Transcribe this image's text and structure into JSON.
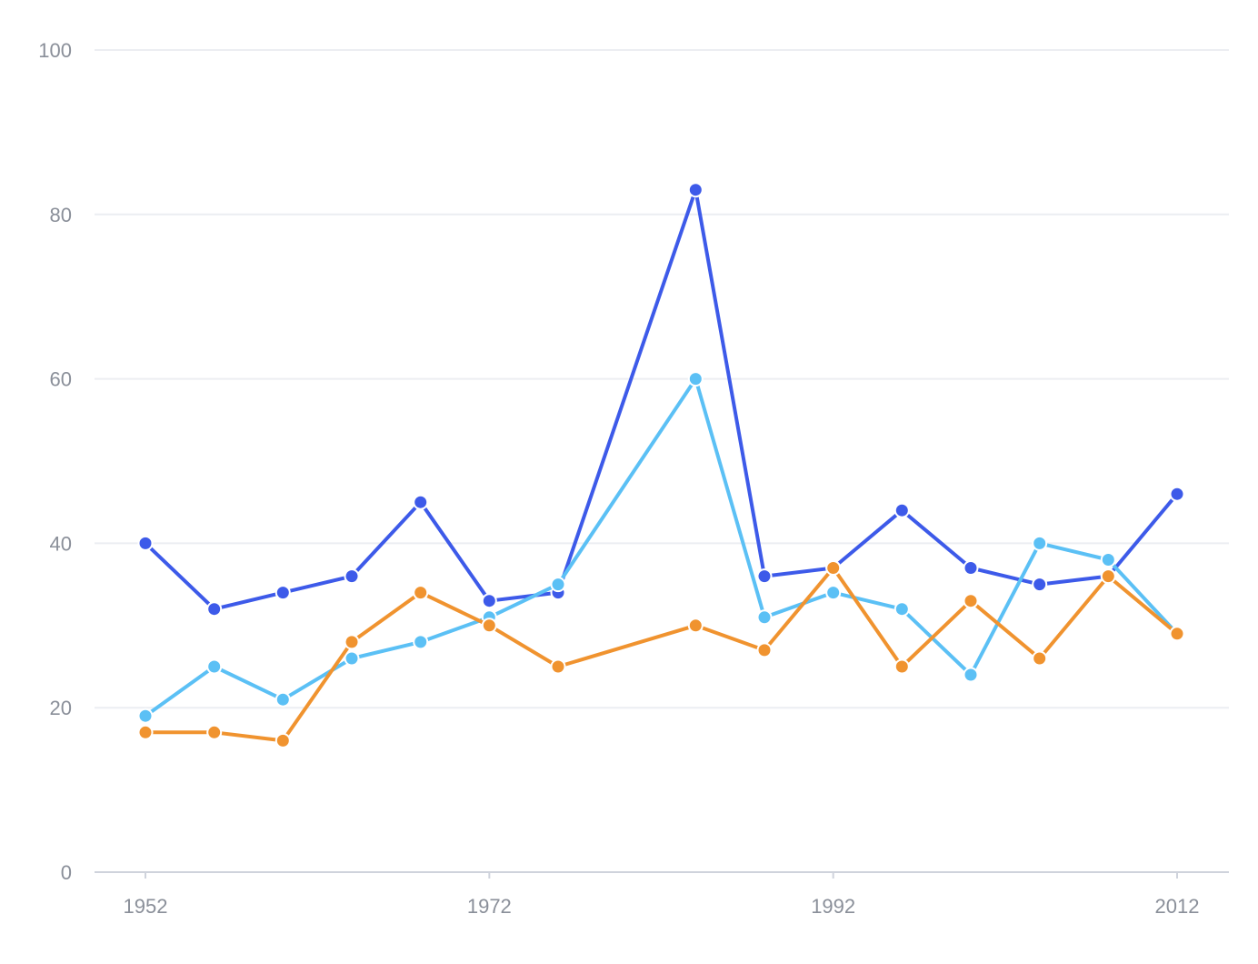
{
  "chart_data": {
    "type": "line",
    "title": "",
    "xlabel": "",
    "ylabel": "",
    "x": [
      1952,
      1956,
      1960,
      1964,
      1968,
      1972,
      1976,
      1984,
      1988,
      1992,
      1996,
      2000,
      2004,
      2008,
      2012
    ],
    "x_ticks": [
      "1952",
      "1972",
      "1992",
      "2012"
    ],
    "xlim": [
      1952,
      2012
    ],
    "y_ticks": [
      "0",
      "20",
      "40",
      "60",
      "80",
      "100"
    ],
    "ylim": [
      0,
      100
    ],
    "grid": "horizontal",
    "legend": "none",
    "series": [
      {
        "color": "#3d5ae9",
        "values": [
          40,
          32,
          34,
          36,
          45,
          33,
          34,
          83,
          36,
          37,
          44,
          37,
          35,
          36,
          46
        ]
      },
      {
        "color": "#5bc0f5",
        "values": [
          19,
          25,
          21,
          26,
          28,
          31,
          35,
          60,
          31,
          34,
          32,
          24,
          40,
          38,
          29
        ]
      },
      {
        "color": "#f0932f",
        "values": [
          17,
          17,
          16,
          28,
          34,
          30,
          25,
          30,
          27,
          37,
          25,
          33,
          26,
          36,
          29
        ]
      }
    ]
  }
}
